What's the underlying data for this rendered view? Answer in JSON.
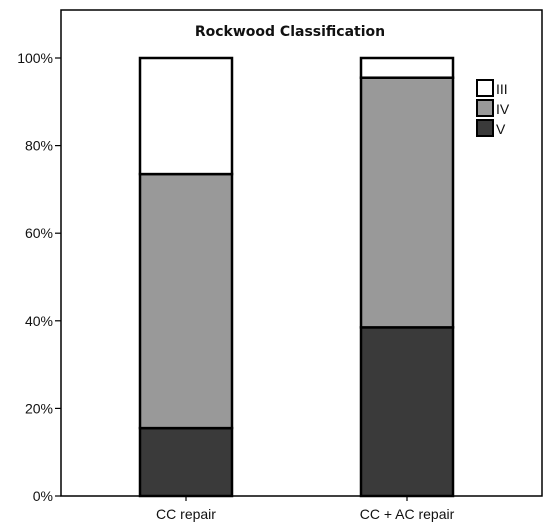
{
  "chart_data": {
    "type": "bar",
    "stacked": true,
    "title": "Rockwood Classification",
    "xlabel": "",
    "ylabel": "",
    "categories": [
      "CC repair",
      "CC + AC repair"
    ],
    "series": [
      {
        "name": "V",
        "color": "#3a3a3a",
        "values": [
          15.5,
          38.5
        ]
      },
      {
        "name": "IV",
        "color": "#999999",
        "values": [
          58,
          57
        ]
      },
      {
        "name": "III",
        "color": "#ffffff",
        "values": [
          26.5,
          4.5
        ]
      }
    ],
    "ylim": [
      0,
      100
    ],
    "yticks": [
      0,
      20,
      40,
      60,
      80,
      100
    ],
    "ytick_labels": [
      "0%",
      "20%",
      "40%",
      "60%",
      "80%",
      "100%"
    ],
    "legend_order": [
      "III",
      "IV",
      "V"
    ],
    "legend_position": "top-right",
    "grid": false
  }
}
